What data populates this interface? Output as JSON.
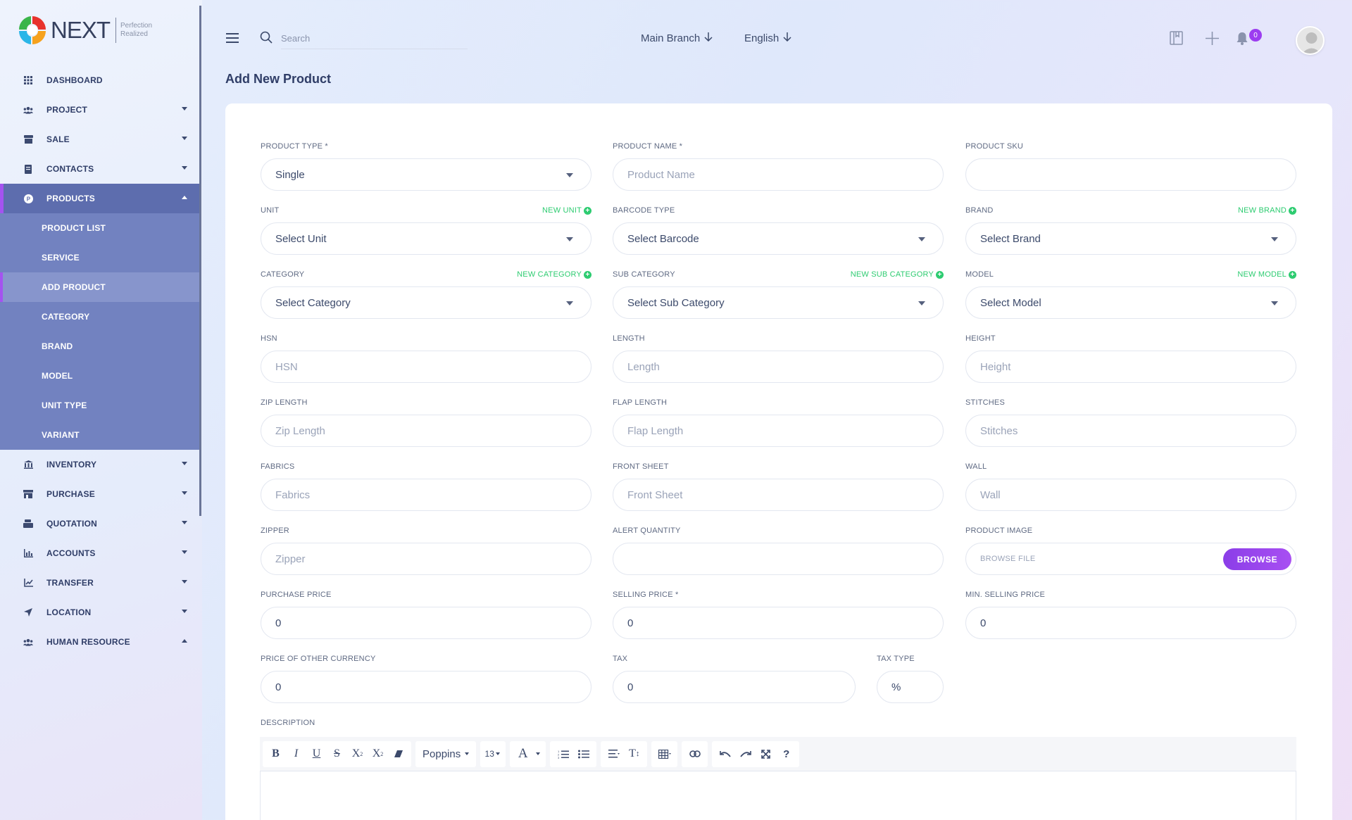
{
  "brand": {
    "name": "NEXT",
    "tagline_1": "Perfection",
    "tagline_2": "Realized"
  },
  "sidebar": {
    "items": [
      {
        "label": "DASHBOARD",
        "icon": "grid-icon"
      },
      {
        "label": "PROJECT",
        "icon": "users-icon"
      },
      {
        "label": "SALE",
        "icon": "store-icon"
      },
      {
        "label": "CONTACTS",
        "icon": "address-book-icon"
      },
      {
        "label": "PRODUCTS",
        "icon": "products-icon"
      },
      {
        "label": "INVENTORY",
        "icon": "bank-icon"
      },
      {
        "label": "PURCHASE",
        "icon": "shop-icon"
      },
      {
        "label": "QUOTATION",
        "icon": "cash-register-icon"
      },
      {
        "label": "ACCOUNTS",
        "icon": "chart-icon"
      },
      {
        "label": "TRANSFER",
        "icon": "chart-line-icon"
      },
      {
        "label": "LOCATION",
        "icon": "location-arrow-icon"
      },
      {
        "label": "HUMAN RESOURCE",
        "icon": "users-icon"
      }
    ],
    "products_sub": [
      "PRODUCT LIST",
      "SERVICE",
      "ADD PRODUCT",
      "CATEGORY",
      "BRAND",
      "MODEL",
      "UNIT TYPE",
      "VARIANT"
    ]
  },
  "topbar": {
    "search_placeholder": "Search",
    "branch": "Main Branch",
    "language": "English",
    "notification_count": "0"
  },
  "page": {
    "title": "Add New Product"
  },
  "form": {
    "product_type": {
      "label": "PRODUCT TYPE *",
      "value": "Single"
    },
    "product_name": {
      "label": "PRODUCT NAME *",
      "placeholder": "Product Name"
    },
    "product_sku": {
      "label": "PRODUCT SKU",
      "value": ""
    },
    "unit": {
      "label": "UNIT",
      "link": "NEW UNIT",
      "value": "Select Unit"
    },
    "barcode_type": {
      "label": "BARCODE TYPE",
      "value": "Select Barcode"
    },
    "brand": {
      "label": "BRAND",
      "link": "NEW BRAND",
      "value": "Select Brand"
    },
    "category": {
      "label": "CATEGORY",
      "link": "NEW CATEGORY",
      "value": "Select Category"
    },
    "sub_category": {
      "label": "SUB CATEGORY",
      "link": "NEW SUB CATEGORY",
      "value": "Select Sub Category"
    },
    "model": {
      "label": "MODEL",
      "link": "NEW MODEL",
      "value": "Select Model"
    },
    "hsn": {
      "label": "HSN",
      "placeholder": "HSN"
    },
    "length": {
      "label": "LENGTH",
      "placeholder": "Length"
    },
    "height": {
      "label": "HEIGHT",
      "placeholder": "Height"
    },
    "zip_length": {
      "label": "ZIP LENGTH",
      "placeholder": "Zip Length"
    },
    "flap_length": {
      "label": "FLAP LENGTH",
      "placeholder": "Flap Length"
    },
    "stitches": {
      "label": "STITCHES",
      "placeholder": "Stitches"
    },
    "fabrics": {
      "label": "FABRICS",
      "placeholder": "Fabrics"
    },
    "front_sheet": {
      "label": "FRONT SHEET",
      "placeholder": "Front Sheet"
    },
    "wall": {
      "label": "WALL",
      "placeholder": "Wall"
    },
    "zipper": {
      "label": "ZIPPER",
      "placeholder": "Zipper"
    },
    "alert_quantity": {
      "label": "ALERT QUANTITY",
      "value": ""
    },
    "product_image": {
      "label": "PRODUCT IMAGE",
      "placeholder": "BROWSE FILE",
      "button": "BROWSE"
    },
    "purchase_price": {
      "label": "PURCHASE PRICE",
      "value": "0"
    },
    "selling_price": {
      "label": "SELLING PRICE *",
      "value": "0"
    },
    "min_selling_price": {
      "label": "MIN. SELLING PRICE",
      "value": "0"
    },
    "other_currency": {
      "label": "PRICE OF OTHER CURRENCY",
      "value": "0"
    },
    "tax": {
      "label": "TAX",
      "value": "0"
    },
    "tax_type": {
      "label": "TAX TYPE",
      "value": "%"
    },
    "description": {
      "label": "DESCRIPTION"
    }
  },
  "editor": {
    "font": "Poppins",
    "font_size": "13"
  },
  "colors": {
    "accent": "#a453f0",
    "sidebar_active": "#5d6dae",
    "submenu": "#7282c0",
    "link_green": "#2ecc71"
  }
}
